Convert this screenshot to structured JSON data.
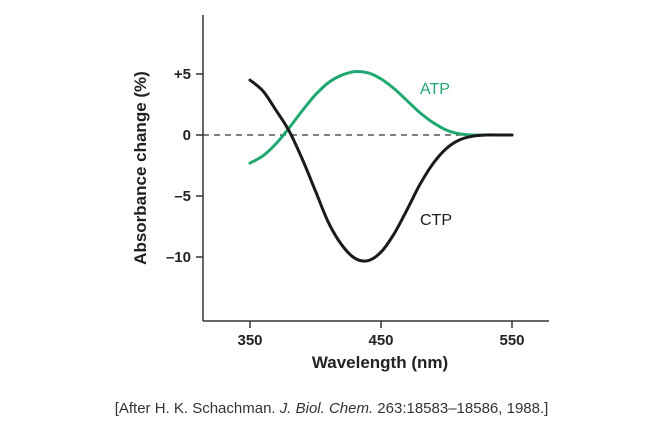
{
  "chart_data": {
    "type": "line",
    "xlabel": "Wavelength (nm)",
    "ylabel": "Absorbance change (%)",
    "xlim": [
      320,
      565
    ],
    "ylim": [
      -15,
      10
    ],
    "x_ticks": [
      350,
      450,
      550
    ],
    "y_ticks": [
      {
        "value": 5,
        "label": "+5"
      },
      {
        "value": 0,
        "label": "0"
      },
      {
        "value": -5,
        "label": "–5"
      },
      {
        "value": -10,
        "label": "–10"
      }
    ],
    "zero_reference_line": "dashed",
    "grid": false,
    "series": [
      {
        "name": "ATP",
        "color": "#1fa86f",
        "x": [
          350,
          360,
          370,
          380,
          390,
          400,
          410,
          420,
          430,
          440,
          450,
          460,
          470,
          480,
          490,
          500,
          510,
          520,
          530,
          540,
          550
        ],
        "y": [
          -2.3,
          -1.7,
          -0.7,
          0.6,
          2.0,
          3.3,
          4.3,
          4.9,
          5.2,
          5.1,
          4.6,
          3.8,
          2.8,
          1.8,
          1.0,
          0.4,
          0.1,
          0.0,
          0.0,
          0.0,
          0.0
        ]
      },
      {
        "name": "CTP",
        "color": "#1a1a1a",
        "x": [
          350,
          360,
          370,
          380,
          390,
          400,
          410,
          420,
          430,
          440,
          450,
          460,
          470,
          480,
          490,
          500,
          510,
          520,
          530,
          540,
          550
        ],
        "y": [
          4.5,
          3.6,
          2.0,
          0.3,
          -2.0,
          -4.6,
          -7.2,
          -9.0,
          -10.1,
          -10.3,
          -9.6,
          -8.1,
          -6.1,
          -4.0,
          -2.3,
          -1.1,
          -0.4,
          -0.1,
          0.0,
          0.0,
          0.0
        ]
      }
    ]
  },
  "citation": {
    "prefix": "[After H. K. Schachman. ",
    "journal": "J. Biol. Chem.",
    "suffix": " 263:18583–18586, 1988.]"
  }
}
